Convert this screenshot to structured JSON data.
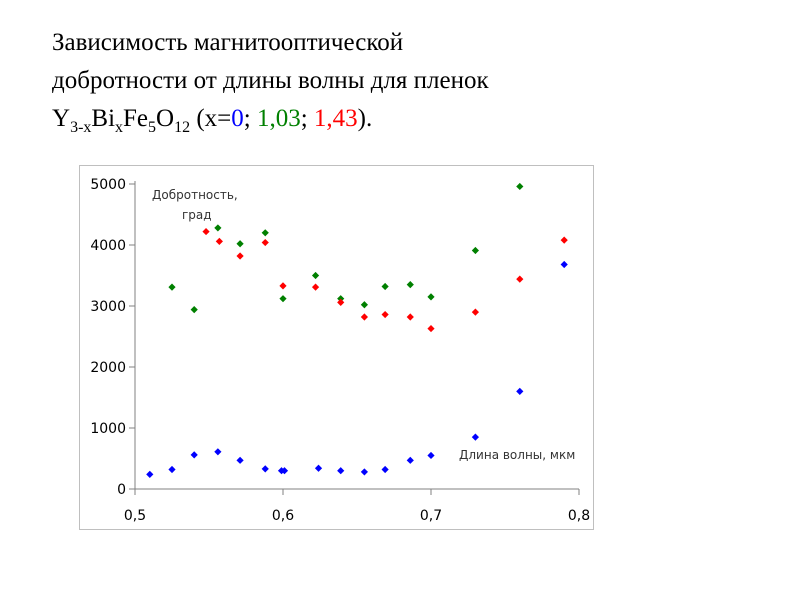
{
  "title": {
    "line1": "Зависимость магнитооптической",
    "line2": "добротности от длины волны для пленок",
    "formula": {
      "y": "Y",
      "y_sub": "3-x",
      "bi": "Bi",
      "bi_sub": "x",
      "fe": "Fe",
      "fe_sub": "5",
      "o": "O",
      "o_sub": "12",
      "open": " (x=",
      "v0": "0",
      "sep1": "; ",
      "v1": "1,03",
      "sep2": "; ",
      "v2": "1,43",
      "close": ")."
    }
  },
  "chart_data": {
    "type": "scatter",
    "title": "",
    "ylabel_line1": "Добротность,",
    "ylabel_line2": "град",
    "xlabel": "Длина волны, мкм",
    "xlim": [
      0.5,
      0.8
    ],
    "ylim": [
      0,
      5000
    ],
    "x_ticks": [
      0.5,
      0.6,
      0.7,
      0.8
    ],
    "x_tick_labels": [
      "0,5",
      "0,6",
      "0,7",
      "0,8"
    ],
    "y_ticks": [
      0,
      1000,
      2000,
      3000,
      4000,
      5000
    ],
    "y_tick_labels": [
      "0",
      "1000",
      "2000",
      "3000",
      "4000",
      "5000"
    ],
    "grid": false,
    "series": [
      {
        "color": "#0000ff",
        "points": [
          [
            0.51,
            240
          ],
          [
            0.525,
            320
          ],
          [
            0.54,
            560
          ],
          [
            0.556,
            610
          ],
          [
            0.571,
            470
          ],
          [
            0.588,
            330
          ],
          [
            0.599,
            300
          ],
          [
            0.601,
            300
          ],
          [
            0.624,
            340
          ],
          [
            0.639,
            300
          ],
          [
            0.655,
            280
          ],
          [
            0.669,
            320
          ],
          [
            0.686,
            470
          ],
          [
            0.7,
            550
          ],
          [
            0.73,
            850
          ],
          [
            0.76,
            1600
          ],
          [
            0.79,
            3680
          ]
        ]
      },
      {
        "color": "#008000",
        "points": [
          [
            0.525,
            3310
          ],
          [
            0.54,
            2940
          ],
          [
            0.556,
            4280
          ],
          [
            0.571,
            4020
          ],
          [
            0.588,
            4200
          ],
          [
            0.6,
            3120
          ],
          [
            0.622,
            3500
          ],
          [
            0.639,
            3120
          ],
          [
            0.655,
            3020
          ],
          [
            0.669,
            3320
          ],
          [
            0.686,
            3350
          ],
          [
            0.7,
            3150
          ],
          [
            0.73,
            3910
          ],
          [
            0.76,
            4960
          ]
        ]
      },
      {
        "color": "#ff0000",
        "points": [
          [
            0.548,
            4220
          ],
          [
            0.557,
            4060
          ],
          [
            0.571,
            3820
          ],
          [
            0.588,
            4040
          ],
          [
            0.6,
            3330
          ],
          [
            0.622,
            3310
          ],
          [
            0.639,
            3060
          ],
          [
            0.655,
            2820
          ],
          [
            0.669,
            2860
          ],
          [
            0.686,
            2820
          ],
          [
            0.7,
            2630
          ],
          [
            0.73,
            2900
          ],
          [
            0.76,
            3440
          ],
          [
            0.79,
            4080
          ]
        ]
      }
    ]
  }
}
